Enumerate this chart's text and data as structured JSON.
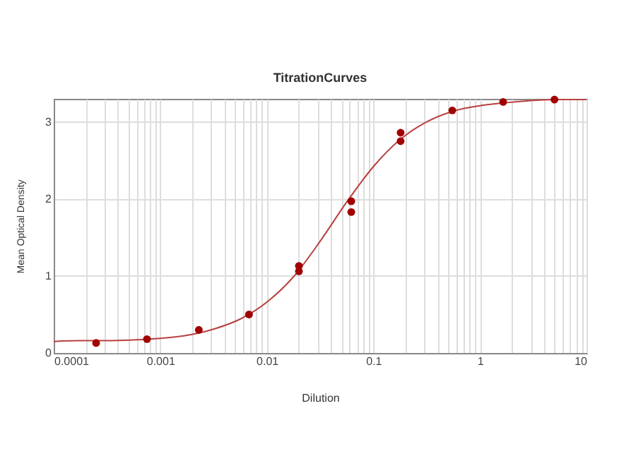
{
  "chart_data": {
    "type": "scatter",
    "title": "TitrationCurves",
    "xlabel": "Dilution",
    "ylabel": "Mean Optical Density",
    "log": "x",
    "grid": true,
    "xlim": [
      0.0001,
      10
    ],
    "ylim": [
      0,
      3.3
    ],
    "xticks": [
      {
        "value": 0.0001,
        "label": "0.0001"
      },
      {
        "value": 0.0002,
        "label": null
      },
      {
        "value": 0.0003,
        "label": null
      },
      {
        "value": 0.0004,
        "label": null
      },
      {
        "value": 0.0005,
        "label": null
      },
      {
        "value": 0.0006,
        "label": null
      },
      {
        "value": 0.0007,
        "label": null
      },
      {
        "value": 0.0008,
        "label": null
      },
      {
        "value": 0.0009,
        "label": null
      },
      {
        "value": 0.001,
        "label": "0.001"
      },
      {
        "value": 0.002,
        "label": null
      },
      {
        "value": 0.003,
        "label": null
      },
      {
        "value": 0.004,
        "label": null
      },
      {
        "value": 0.005,
        "label": null
      },
      {
        "value": 0.006,
        "label": null
      },
      {
        "value": 0.007,
        "label": null
      },
      {
        "value": 0.008,
        "label": null
      },
      {
        "value": 0.009,
        "label": null
      },
      {
        "value": 0.01,
        "label": "0.01"
      },
      {
        "value": 0.02,
        "label": null
      },
      {
        "value": 0.03,
        "label": null
      },
      {
        "value": 0.04,
        "label": null
      },
      {
        "value": 0.05,
        "label": null
      },
      {
        "value": 0.06,
        "label": null
      },
      {
        "value": 0.07,
        "label": null
      },
      {
        "value": 0.08,
        "label": null
      },
      {
        "value": 0.09,
        "label": null
      },
      {
        "value": 0.1,
        "label": "0.1"
      },
      {
        "value": 0.2,
        "label": null
      },
      {
        "value": 0.3,
        "label": null
      },
      {
        "value": 0.4,
        "label": null
      },
      {
        "value": 0.5,
        "label": null
      },
      {
        "value": 0.6,
        "label": null
      },
      {
        "value": 0.7,
        "label": null
      },
      {
        "value": 0.8,
        "label": null
      },
      {
        "value": 0.9,
        "label": null
      },
      {
        "value": 1,
        "label": "1"
      },
      {
        "value": 2,
        "label": null
      },
      {
        "value": 3,
        "label": null
      },
      {
        "value": 4,
        "label": null
      },
      {
        "value": 5,
        "label": null
      },
      {
        "value": 6,
        "label": null
      },
      {
        "value": 7,
        "label": null
      },
      {
        "value": 8,
        "label": null
      },
      {
        "value": 9,
        "label": null
      },
      {
        "value": 10,
        "label": "10"
      }
    ],
    "yticks": [
      0,
      1,
      2,
      3
    ],
    "series": [
      {
        "type": "line",
        "marker": "none",
        "line_style": "solid",
        "color": "#b84040",
        "x": [
          0.0001,
          0.000178,
          0.000316,
          0.000562,
          0.001,
          0.00178,
          0.00316,
          0.00562,
          0.01,
          0.0178,
          0.0316,
          0.0562,
          0.1,
          0.178,
          0.316,
          0.562,
          1,
          1.78,
          3.16,
          5.62,
          10
        ],
        "values": [
          0.15,
          0.16,
          0.16,
          0.17,
          0.19,
          0.23,
          0.31,
          0.44,
          0.66,
          0.99,
          1.45,
          1.96,
          2.42,
          2.77,
          3.0,
          3.14,
          3.21,
          3.25,
          3.28,
          3.29,
          3.29
        ]
      },
      {
        "marker": "circle",
        "color": "#a00000",
        "x": [
          0.00025,
          0.00075,
          0.0023,
          0.0068,
          0.02,
          0.02,
          0.062,
          0.062,
          0.18,
          0.18,
          0.55,
          1.65,
          5
        ],
        "values": [
          0.13,
          0.18,
          0.3,
          0.5,
          1.06,
          1.13,
          1.83,
          1.97,
          2.75,
          2.86,
          3.15,
          3.26,
          3.29
        ]
      }
    ]
  }
}
